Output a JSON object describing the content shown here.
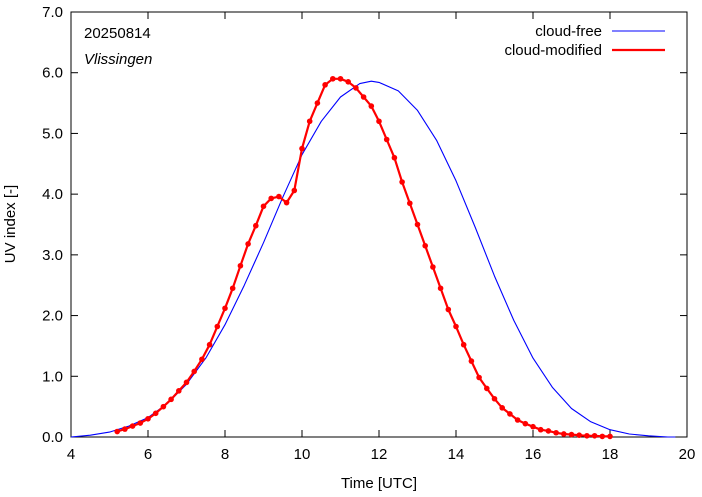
{
  "chart_data": {
    "type": "line",
    "date_label": "20250814",
    "location_label": "Vlissingen",
    "xlabel": "Time  [UTC]",
    "ylabel": "UV index  [-]",
    "xlim": [
      4,
      20
    ],
    "ylim": [
      0,
      7
    ],
    "x_ticks": [
      4,
      6,
      8,
      10,
      12,
      14,
      16,
      18,
      20
    ],
    "x_tick_labels": [
      "4",
      "6",
      "8",
      "10",
      "12",
      "14",
      "16",
      "18",
      "20"
    ],
    "y_ticks": [
      0,
      1,
      2,
      3,
      4,
      5,
      6,
      7
    ],
    "y_tick_labels": [
      "0.0",
      "1.0",
      "2.0",
      "3.0",
      "4.0",
      "5.0",
      "6.0",
      "7.0"
    ],
    "grid": false,
    "legend_position": "top-right",
    "series": [
      {
        "name": "cloud-free",
        "color": "#0000ff",
        "style": "line",
        "x": [
          4.0,
          4.5,
          5.0,
          5.5,
          6.0,
          6.5,
          7.0,
          7.5,
          8.0,
          8.5,
          9.0,
          9.5,
          10.0,
          10.5,
          11.0,
          11.5,
          11.8,
          12.0,
          12.5,
          13.0,
          13.5,
          14.0,
          14.5,
          15.0,
          15.5,
          16.0,
          16.5,
          17.0,
          17.5,
          18.0,
          18.5,
          19.0,
          19.5,
          19.7
        ],
        "y": [
          0.0,
          0.03,
          0.08,
          0.18,
          0.32,
          0.55,
          0.87,
          1.3,
          1.85,
          2.5,
          3.2,
          3.95,
          4.65,
          5.2,
          5.6,
          5.82,
          5.86,
          5.84,
          5.7,
          5.38,
          4.88,
          4.22,
          3.45,
          2.65,
          1.92,
          1.3,
          0.82,
          0.47,
          0.25,
          0.12,
          0.05,
          0.02,
          0.0,
          0.0
        ]
      },
      {
        "name": "cloud-modified",
        "color": "#ff0000",
        "style": "line-points",
        "x": [
          5.2,
          5.4,
          5.6,
          5.8,
          6.0,
          6.2,
          6.4,
          6.6,
          6.8,
          7.0,
          7.2,
          7.4,
          7.6,
          7.8,
          8.0,
          8.2,
          8.4,
          8.6,
          8.8,
          9.0,
          9.2,
          9.4,
          9.6,
          9.8,
          10.0,
          10.2,
          10.4,
          10.6,
          10.8,
          11.0,
          11.2,
          11.4,
          11.6,
          11.8,
          12.0,
          12.2,
          12.4,
          12.6,
          12.8,
          13.0,
          13.2,
          13.4,
          13.6,
          13.8,
          14.0,
          14.2,
          14.4,
          14.6,
          14.8,
          15.0,
          15.2,
          15.4,
          15.6,
          15.8,
          16.0,
          16.2,
          16.4,
          16.6,
          16.8,
          17.0,
          17.2,
          17.4,
          17.6,
          17.8,
          18.0
        ],
        "y": [
          0.09,
          0.13,
          0.18,
          0.23,
          0.3,
          0.39,
          0.5,
          0.62,
          0.76,
          0.9,
          1.08,
          1.28,
          1.52,
          1.82,
          2.12,
          2.45,
          2.82,
          3.18,
          3.48,
          3.8,
          3.93,
          3.96,
          3.86,
          4.06,
          4.75,
          5.2,
          5.5,
          5.8,
          5.9,
          5.9,
          5.85,
          5.75,
          5.6,
          5.45,
          5.2,
          4.9,
          4.6,
          4.2,
          3.85,
          3.5,
          3.15,
          2.8,
          2.45,
          2.1,
          1.82,
          1.52,
          1.25,
          0.98,
          0.8,
          0.63,
          0.48,
          0.38,
          0.28,
          0.22,
          0.17,
          0.12,
          0.1,
          0.07,
          0.05,
          0.04,
          0.03,
          0.02,
          0.02,
          0.01,
          0.01
        ]
      }
    ]
  }
}
